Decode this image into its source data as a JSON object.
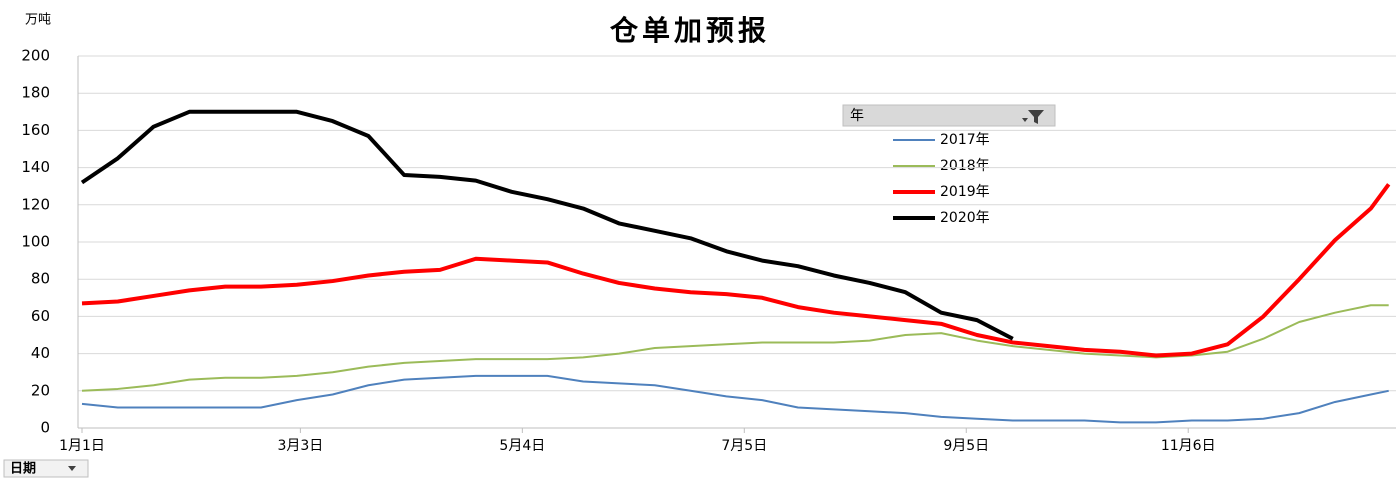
{
  "chart_data": {
    "type": "line",
    "title": "仓单加预报",
    "y_unit": "万吨",
    "legend_title": "年",
    "field_button": "日期",
    "legend_position": "upper right",
    "grid": true,
    "x": [
      0,
      10,
      20,
      30,
      40,
      50,
      60,
      70,
      80,
      90,
      100,
      110,
      120,
      130,
      140,
      150,
      160,
      170,
      180,
      190,
      200,
      210,
      220,
      230,
      240,
      250,
      260,
      270,
      280,
      290,
      300,
      310,
      320,
      330,
      340,
      350,
      360,
      365
    ],
    "xlim": [
      0,
      367
    ],
    "xticks": [
      {
        "value": 0,
        "label": "1月1日"
      },
      {
        "value": 61,
        "label": "3月3日"
      },
      {
        "value": 123,
        "label": "5月4日"
      },
      {
        "value": 185,
        "label": "7月5日"
      },
      {
        "value": 247,
        "label": "9月5日"
      },
      {
        "value": 309,
        "label": "11月6日"
      }
    ],
    "ylim": [
      0,
      200
    ],
    "yticks": [
      0,
      20,
      40,
      60,
      80,
      100,
      120,
      140,
      160,
      180,
      200
    ],
    "series": [
      {
        "name": "2017年",
        "color": "#4f81bd",
        "line_width": 2,
        "values": [
          13,
          11,
          11,
          11,
          11,
          11,
          15,
          18,
          23,
          26,
          27,
          28,
          28,
          28,
          25,
          24,
          23,
          20,
          17,
          15,
          11,
          10,
          9,
          8,
          6,
          5,
          4,
          4,
          4,
          3,
          3,
          4,
          4,
          5,
          8,
          14,
          18,
          20
        ]
      },
      {
        "name": "2018年",
        "color": "#9bbb59",
        "line_width": 2,
        "values": [
          20,
          21,
          23,
          26,
          27,
          27,
          28,
          30,
          33,
          35,
          36,
          37,
          37,
          37,
          38,
          40,
          43,
          44,
          45,
          46,
          46,
          46,
          47,
          50,
          51,
          47,
          44,
          42,
          40,
          39,
          38,
          39,
          41,
          48,
          57,
          62,
          66,
          66
        ]
      },
      {
        "name": "2019年",
        "color": "#ff0000",
        "line_width": 4,
        "values": [
          67,
          68,
          71,
          74,
          76,
          76,
          77,
          79,
          82,
          84,
          85,
          91,
          90,
          89,
          83,
          78,
          75,
          73,
          72,
          70,
          65,
          62,
          60,
          58,
          56,
          50,
          46,
          44,
          42,
          41,
          39,
          40,
          45,
          60,
          80,
          101,
          118,
          131
        ]
      },
      {
        "name": "2020年",
        "color": "#000000",
        "line_width": 4,
        "values": [
          132,
          145,
          162,
          170,
          170,
          170,
          170,
          165,
          157,
          136,
          135,
          133,
          127,
          123,
          118,
          110,
          106,
          102,
          95,
          90,
          87,
          82,
          78,
          73,
          62,
          58,
          48,
          null,
          null,
          null,
          null,
          null,
          null,
          null,
          null,
          null,
          null,
          null
        ]
      }
    ]
  }
}
